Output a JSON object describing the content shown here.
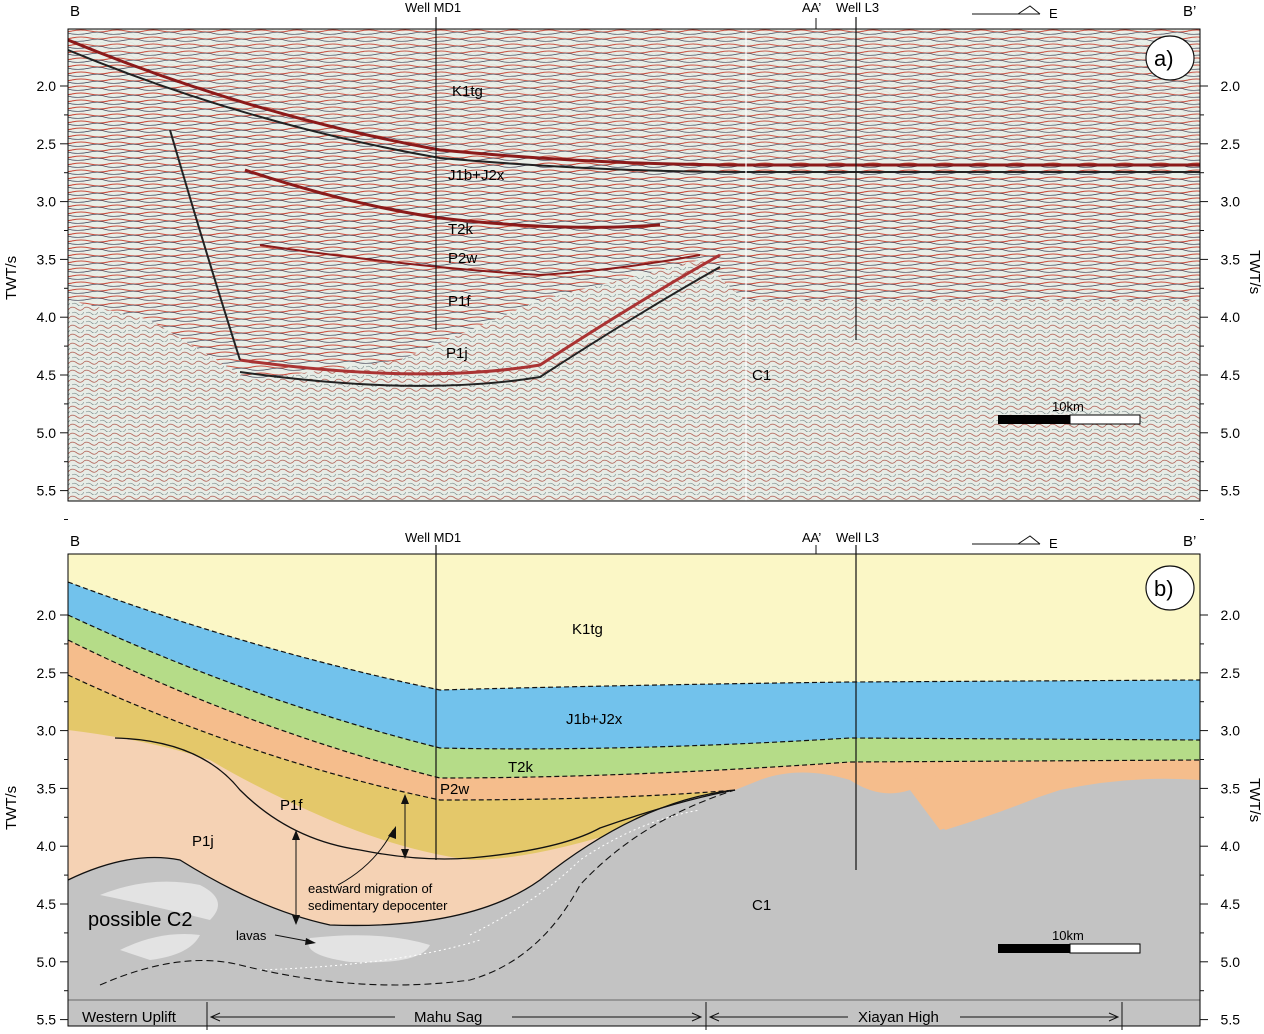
{
  "figure": {
    "y_axis": {
      "title": "TWT/s",
      "ticks": [
        "2.0",
        "2.5",
        "3.0",
        "3.5",
        "4.0",
        "4.5",
        "5.0",
        "5.5"
      ]
    },
    "profile_ends": {
      "left": "B",
      "right": "B’"
    },
    "wells": [
      {
        "label": "Well MD1"
      },
      {
        "label": "Well L3"
      }
    ],
    "tie_line": "AA’",
    "direction": "E",
    "scale_bar": "10km"
  },
  "panel_a": {
    "label": "a)",
    "units": {
      "k1tg": "K1tg",
      "j1b_j2x": "J1b+J2x",
      "t2k": "T2k",
      "p2w": "P2w",
      "p1f": "P1f",
      "p1j": "P1j",
      "c1": "C1"
    }
  },
  "panel_b": {
    "label": "b)",
    "units": {
      "k1tg": "K1tg",
      "j1b_j2x": "J1b+J2x",
      "t2k": "T2k",
      "p2w": "P2w",
      "p1f": "P1f",
      "p1j": "P1j",
      "c1": "C1",
      "c2": "possible C2"
    },
    "annotations": {
      "lavas": "lavas",
      "migration_line1": "eastward migration of",
      "migration_line2": "sedimentary depocenter"
    },
    "regions": {
      "western": "Western Uplift",
      "mahu": "Mahu Sag",
      "xiayan": "Xiayan High"
    },
    "colors": {
      "k1tg": "#fbf7c6",
      "j1b_j2x": "#72c2ec",
      "t2k": "#b5dc88",
      "p2w": "#f5bd8c",
      "p1f": "#e4c86a",
      "p1j": "#f5d2b4",
      "basement": "#c3c3c3",
      "lava": "#e3e3e3"
    }
  }
}
